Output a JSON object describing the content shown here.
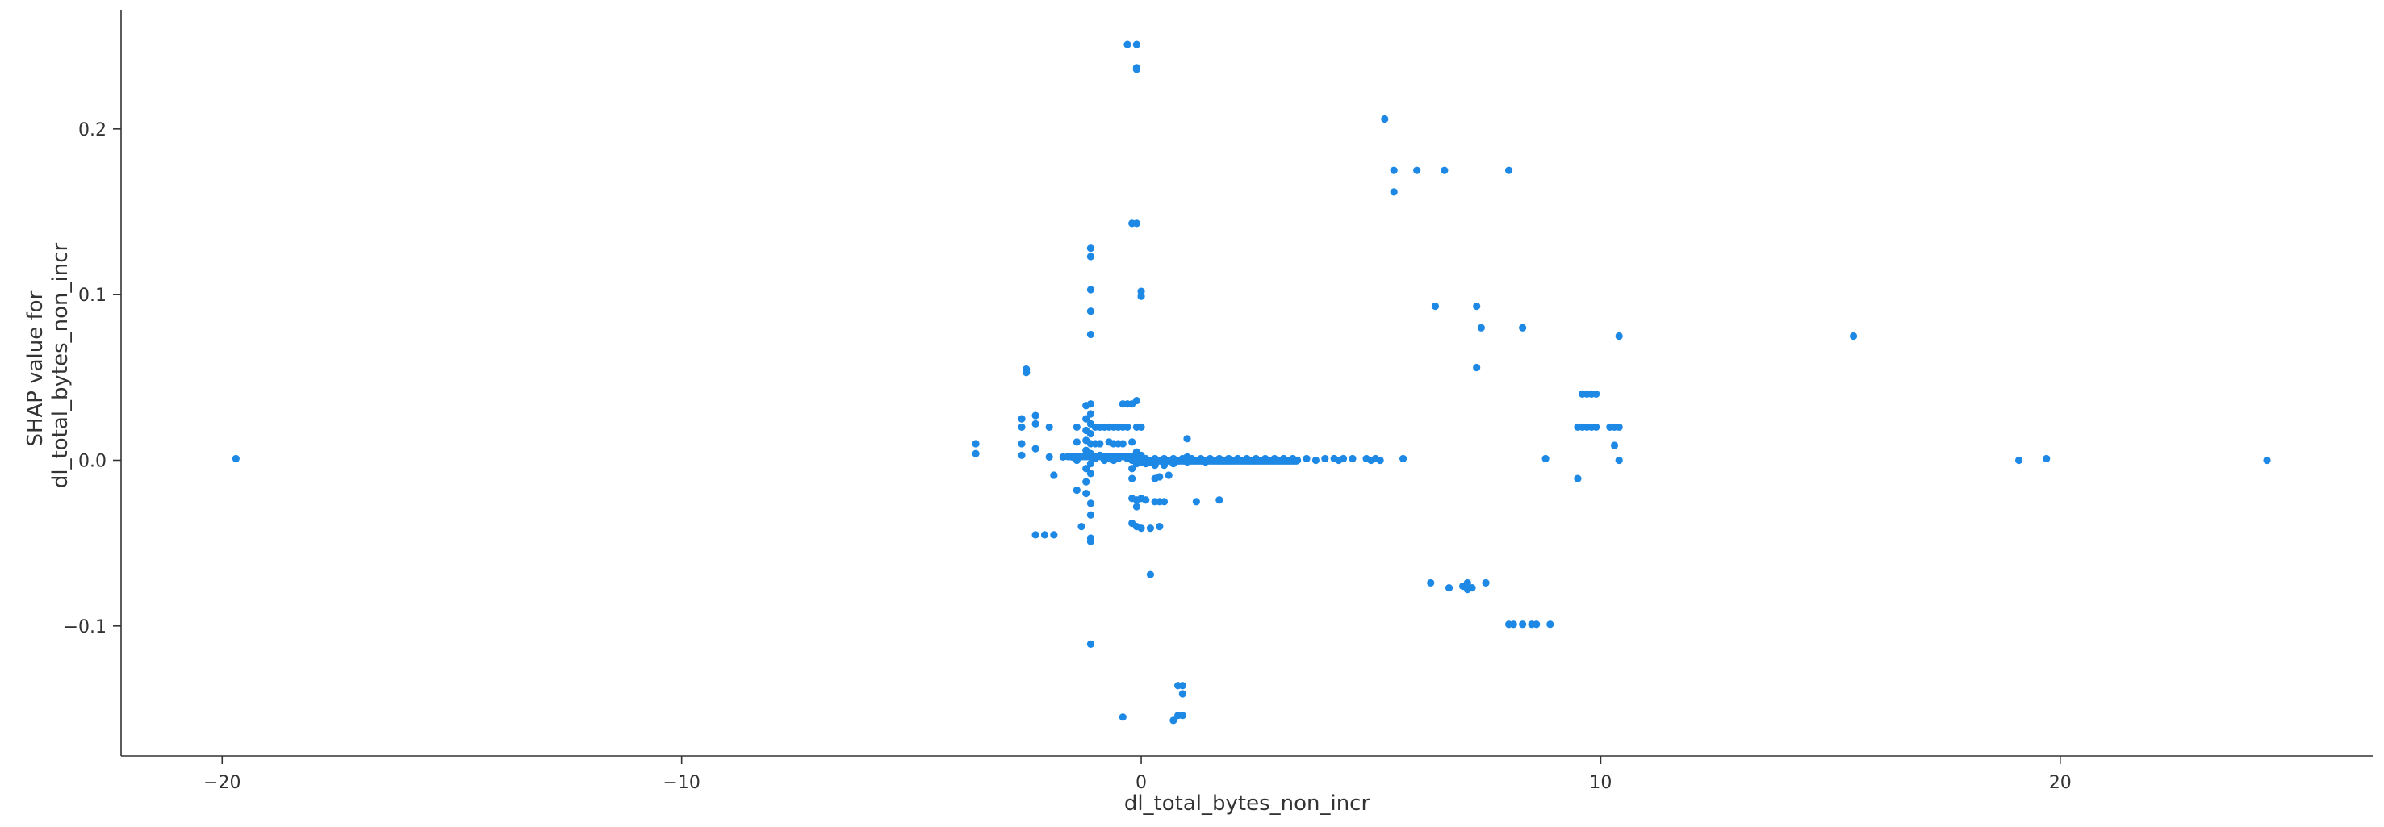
{
  "chart_data": {
    "type": "scatter",
    "title": "",
    "xlabel": "dl_total_bytes_non_incr",
    "ylabel": [
      "SHAP value for",
      "dl_total_bytes_non_incr"
    ],
    "xlim": [
      -22.2,
      26.8
    ],
    "ylim": [
      -0.1785,
      0.272
    ],
    "xticks": [
      {
        "value": -20,
        "label": "−20"
      },
      {
        "value": -10,
        "label": "−10"
      },
      {
        "value": 0,
        "label": "0"
      },
      {
        "value": 10,
        "label": "10"
      },
      {
        "value": 20,
        "label": "20"
      }
    ],
    "yticks": [
      {
        "value": -0.1,
        "label": "−0.1"
      },
      {
        "value": 0.0,
        "label": "0.0"
      },
      {
        "value": 0.1,
        "label": "0.1"
      },
      {
        "value": 0.2,
        "label": "0.2"
      }
    ],
    "grid": false,
    "point_color": "#1e88e5",
    "points": [
      {
        "x": -19.7,
        "y": 0.001
      },
      {
        "x": -3.6,
        "y": 0.01
      },
      {
        "x": -3.6,
        "y": 0.004
      },
      {
        "x": -2.6,
        "y": 0.025
      },
      {
        "x": -2.6,
        "y": 0.02
      },
      {
        "x": -2.6,
        "y": 0.01
      },
      {
        "x": -2.6,
        "y": 0.003
      },
      {
        "x": -2.5,
        "y": 0.055
      },
      {
        "x": -2.5,
        "y": 0.053
      },
      {
        "x": -2.3,
        "y": 0.027
      },
      {
        "x": -2.3,
        "y": 0.022
      },
      {
        "x": -2.3,
        "y": 0.007
      },
      {
        "x": -2.3,
        "y": -0.045
      },
      {
        "x": -2.1,
        "y": -0.045
      },
      {
        "x": -1.9,
        "y": -0.045
      },
      {
        "x": -2.0,
        "y": 0.02
      },
      {
        "x": -2.0,
        "y": 0.002
      },
      {
        "x": -1.9,
        "y": -0.009
      },
      {
        "x": -1.7,
        "y": 0.002
      },
      {
        "x": -1.5,
        "y": 0.002
      },
      {
        "x": -1.4,
        "y": 0.02
      },
      {
        "x": -1.4,
        "y": 0.011
      },
      {
        "x": -1.4,
        "y": 0.0
      },
      {
        "x": -1.4,
        "y": -0.018
      },
      {
        "x": -1.3,
        "y": -0.04
      },
      {
        "x": -1.2,
        "y": 0.033
      },
      {
        "x": -1.2,
        "y": 0.025
      },
      {
        "x": -1.2,
        "y": 0.018
      },
      {
        "x": -1.2,
        "y": 0.012
      },
      {
        "x": -1.2,
        "y": 0.006
      },
      {
        "x": -1.2,
        "y": -0.005
      },
      {
        "x": -1.2,
        "y": -0.013
      },
      {
        "x": -1.2,
        "y": -0.02
      },
      {
        "x": -1.1,
        "y": 0.128
      },
      {
        "x": -1.1,
        "y": 0.123
      },
      {
        "x": -1.1,
        "y": 0.103
      },
      {
        "x": -1.1,
        "y": 0.09
      },
      {
        "x": -1.1,
        "y": 0.076
      },
      {
        "x": -1.1,
        "y": 0.034
      },
      {
        "x": -1.1,
        "y": 0.028
      },
      {
        "x": -1.1,
        "y": 0.022
      },
      {
        "x": -1.1,
        "y": 0.016
      },
      {
        "x": -1.1,
        "y": 0.01
      },
      {
        "x": -1.1,
        "y": 0.004
      },
      {
        "x": -1.1,
        "y": -0.002
      },
      {
        "x": -1.1,
        "y": -0.008
      },
      {
        "x": -1.1,
        "y": -0.026
      },
      {
        "x": -1.1,
        "y": -0.033
      },
      {
        "x": -1.1,
        "y": -0.047
      },
      {
        "x": -1.1,
        "y": -0.049
      },
      {
        "x": -1.1,
        "y": -0.111
      },
      {
        "x": -1.0,
        "y": 0.02
      },
      {
        "x": -1.0,
        "y": 0.01
      },
      {
        "x": -1.0,
        "y": 0.001
      },
      {
        "x": -0.9,
        "y": 0.02
      },
      {
        "x": -0.9,
        "y": 0.01
      },
      {
        "x": -0.9,
        "y": 0.003
      },
      {
        "x": -0.8,
        "y": 0.02
      },
      {
        "x": -0.8,
        "y": 0.0
      },
      {
        "x": -0.7,
        "y": 0.02
      },
      {
        "x": -0.7,
        "y": 0.011
      },
      {
        "x": -0.7,
        "y": 0.001
      },
      {
        "x": -0.6,
        "y": 0.02
      },
      {
        "x": -0.6,
        "y": 0.01
      },
      {
        "x": -0.6,
        "y": 0.0
      },
      {
        "x": -0.5,
        "y": 0.02
      },
      {
        "x": -0.5,
        "y": 0.01
      },
      {
        "x": -0.5,
        "y": 0.001
      },
      {
        "x": -0.4,
        "y": 0.034
      },
      {
        "x": -0.4,
        "y": 0.02
      },
      {
        "x": -0.4,
        "y": 0.01
      },
      {
        "x": -0.4,
        "y": -0.155
      },
      {
        "x": -0.3,
        "y": 0.251
      },
      {
        "x": -0.3,
        "y": 0.034
      },
      {
        "x": -0.3,
        "y": 0.02
      },
      {
        "x": -0.3,
        "y": 0.001
      },
      {
        "x": -0.2,
        "y": 0.143
      },
      {
        "x": -0.2,
        "y": 0.034
      },
      {
        "x": -0.2,
        "y": 0.011
      },
      {
        "x": -0.2,
        "y": 0.0
      },
      {
        "x": -0.2,
        "y": -0.005
      },
      {
        "x": -0.2,
        "y": -0.011
      },
      {
        "x": -0.2,
        "y": -0.023
      },
      {
        "x": -0.2,
        "y": -0.038
      },
      {
        "x": -0.1,
        "y": 0.251
      },
      {
        "x": -0.1,
        "y": 0.237
      },
      {
        "x": -0.1,
        "y": 0.236
      },
      {
        "x": -0.1,
        "y": 0.143
      },
      {
        "x": -0.1,
        "y": 0.036
      },
      {
        "x": -0.1,
        "y": 0.02
      },
      {
        "x": -0.1,
        "y": 0.005
      },
      {
        "x": -0.1,
        "y": -0.002
      },
      {
        "x": -0.1,
        "y": -0.024
      },
      {
        "x": -0.1,
        "y": -0.028
      },
      {
        "x": -0.1,
        "y": -0.04
      },
      {
        "x": 0.0,
        "y": 0.102
      },
      {
        "x": 0.0,
        "y": 0.099
      },
      {
        "x": 0.0,
        "y": 0.02
      },
      {
        "x": 0.0,
        "y": 0.003
      },
      {
        "x": 0.0,
        "y": -0.001
      },
      {
        "x": 0.0,
        "y": -0.023
      },
      {
        "x": 0.0,
        "y": -0.041
      },
      {
        "x": 0.1,
        "y": 0.001
      },
      {
        "x": 0.1,
        "y": -0.002
      },
      {
        "x": 0.1,
        "y": -0.024
      },
      {
        "x": 0.2,
        "y": -0.001
      },
      {
        "x": 0.2,
        "y": -0.041
      },
      {
        "x": 0.2,
        "y": -0.069
      },
      {
        "x": 0.3,
        "y": 0.001
      },
      {
        "x": 0.3,
        "y": -0.003
      },
      {
        "x": 0.3,
        "y": -0.011
      },
      {
        "x": 0.3,
        "y": -0.025
      },
      {
        "x": 0.4,
        "y": 0.0
      },
      {
        "x": 0.4,
        "y": -0.01
      },
      {
        "x": 0.4,
        "y": -0.025
      },
      {
        "x": 0.4,
        "y": -0.04
      },
      {
        "x": 0.5,
        "y": 0.001
      },
      {
        "x": 0.5,
        "y": -0.003
      },
      {
        "x": 0.5,
        "y": -0.025
      },
      {
        "x": 0.6,
        "y": 0.0
      },
      {
        "x": 0.6,
        "y": -0.009
      },
      {
        "x": 0.7,
        "y": 0.001
      },
      {
        "x": 0.7,
        "y": -0.002
      },
      {
        "x": 0.7,
        "y": -0.157
      },
      {
        "x": 0.8,
        "y": 0.0
      },
      {
        "x": 0.8,
        "y": -0.136
      },
      {
        "x": 0.8,
        "y": -0.154
      },
      {
        "x": 0.9,
        "y": 0.001
      },
      {
        "x": 0.9,
        "y": -0.136
      },
      {
        "x": 0.9,
        "y": -0.141
      },
      {
        "x": 0.9,
        "y": -0.154
      },
      {
        "x": 1.0,
        "y": 0.013
      },
      {
        "x": 1.0,
        "y": 0.002
      },
      {
        "x": 1.0,
        "y": -0.001
      },
      {
        "x": 1.1,
        "y": 0.001
      },
      {
        "x": 1.2,
        "y": 0.0
      },
      {
        "x": 1.2,
        "y": -0.025
      },
      {
        "x": 1.3,
        "y": 0.001
      },
      {
        "x": 1.4,
        "y": -0.001
      },
      {
        "x": 1.5,
        "y": 0.001
      },
      {
        "x": 1.6,
        "y": 0.0
      },
      {
        "x": 1.7,
        "y": 0.001
      },
      {
        "x": 1.7,
        "y": -0.024
      },
      {
        "x": 1.8,
        "y": 0.0
      },
      {
        "x": 1.9,
        "y": 0.001
      },
      {
        "x": 2.0,
        "y": 0.0
      },
      {
        "x": 2.1,
        "y": 0.001
      },
      {
        "x": 2.2,
        "y": 0.0
      },
      {
        "x": 2.3,
        "y": 0.001
      },
      {
        "x": 2.4,
        "y": 0.0
      },
      {
        "x": 2.5,
        "y": 0.001
      },
      {
        "x": 2.6,
        "y": 0.0
      },
      {
        "x": 2.7,
        "y": 0.001
      },
      {
        "x": 2.8,
        "y": 0.0
      },
      {
        "x": 2.9,
        "y": 0.001
      },
      {
        "x": 3.0,
        "y": 0.0
      },
      {
        "x": 3.1,
        "y": 0.001
      },
      {
        "x": 3.2,
        "y": 0.0
      },
      {
        "x": 3.3,
        "y": 0.001
      },
      {
        "x": 3.4,
        "y": 0.0
      },
      {
        "x": 3.6,
        "y": 0.001
      },
      {
        "x": 3.8,
        "y": 0.0
      },
      {
        "x": 4.0,
        "y": 0.001
      },
      {
        "x": 4.2,
        "y": 0.001
      },
      {
        "x": 4.3,
        "y": 0.0
      },
      {
        "x": 4.4,
        "y": 0.001
      },
      {
        "x": 4.6,
        "y": 0.001
      },
      {
        "x": 4.9,
        "y": 0.001
      },
      {
        "x": 5.0,
        "y": 0.0
      },
      {
        "x": 5.1,
        "y": 0.001
      },
      {
        "x": 5.2,
        "y": 0.0
      },
      {
        "x": 5.3,
        "y": 0.206
      },
      {
        "x": 5.5,
        "y": 0.175
      },
      {
        "x": 5.5,
        "y": 0.162
      },
      {
        "x": 5.7,
        "y": 0.001
      },
      {
        "x": 6.0,
        "y": 0.175
      },
      {
        "x": 6.3,
        "y": -0.074
      },
      {
        "x": 6.4,
        "y": 0.093
      },
      {
        "x": 6.6,
        "y": 0.175
      },
      {
        "x": 6.7,
        "y": -0.077
      },
      {
        "x": 7.0,
        "y": -0.076
      },
      {
        "x": 7.1,
        "y": -0.074
      },
      {
        "x": 7.1,
        "y": -0.078
      },
      {
        "x": 7.2,
        "y": -0.077
      },
      {
        "x": 7.3,
        "y": 0.093
      },
      {
        "x": 7.3,
        "y": 0.056
      },
      {
        "x": 7.4,
        "y": 0.08
      },
      {
        "x": 7.5,
        "y": -0.074
      },
      {
        "x": 8.0,
        "y": 0.175
      },
      {
        "x": 8.0,
        "y": -0.099
      },
      {
        "x": 8.1,
        "y": -0.099
      },
      {
        "x": 8.3,
        "y": 0.08
      },
      {
        "x": 8.3,
        "y": -0.099
      },
      {
        "x": 8.5,
        "y": -0.099
      },
      {
        "x": 8.6,
        "y": -0.099
      },
      {
        "x": 8.8,
        "y": 0.001
      },
      {
        "x": 8.9,
        "y": -0.099
      },
      {
        "x": 9.5,
        "y": 0.02
      },
      {
        "x": 9.5,
        "y": -0.011
      },
      {
        "x": 9.6,
        "y": 0.04
      },
      {
        "x": 9.6,
        "y": 0.02
      },
      {
        "x": 9.7,
        "y": 0.04
      },
      {
        "x": 9.7,
        "y": 0.02
      },
      {
        "x": 9.8,
        "y": 0.04
      },
      {
        "x": 9.8,
        "y": 0.02
      },
      {
        "x": 9.9,
        "y": 0.04
      },
      {
        "x": 9.9,
        "y": 0.02
      },
      {
        "x": 10.2,
        "y": 0.02
      },
      {
        "x": 10.3,
        "y": 0.02
      },
      {
        "x": 10.3,
        "y": 0.009
      },
      {
        "x": 10.4,
        "y": 0.02
      },
      {
        "x": 10.4,
        "y": 0.0
      },
      {
        "x": 10.4,
        "y": 0.075
      },
      {
        "x": 15.5,
        "y": 0.075
      },
      {
        "x": 19.1,
        "y": 0.0
      },
      {
        "x": 19.7,
        "y": 0.001
      },
      {
        "x": 24.5,
        "y": 0.0
      }
    ],
    "dense_runs": [
      {
        "x_from": -1.6,
        "x_to": 3.4,
        "y": 0.0005
      }
    ]
  }
}
